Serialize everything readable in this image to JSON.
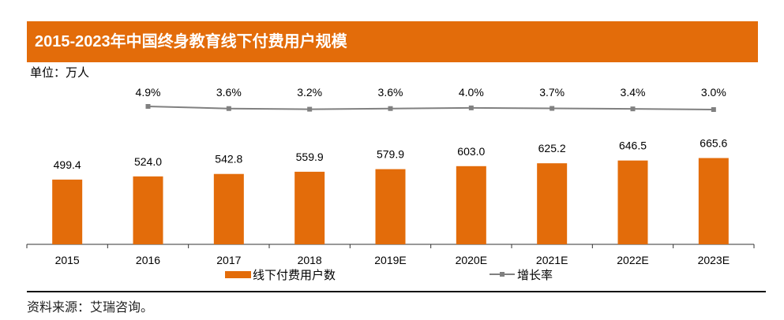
{
  "chart_data": {
    "type": "bar+line",
    "title": "2015-2023年中国终身教育线下付费用户规模",
    "unit": "单位：万人",
    "categories": [
      "2015",
      "2016",
      "2017",
      "2018",
      "2019E",
      "2020E",
      "2021E",
      "2022E",
      "2023E"
    ],
    "series": [
      {
        "name": "线下付费用户数",
        "type": "bar",
        "values": [
          499.4,
          524.0,
          542.8,
          559.9,
          579.9,
          603.0,
          625.2,
          646.5,
          665.6
        ],
        "labels": [
          "499.4",
          "524.0",
          "542.8",
          "559.9",
          "579.9",
          "603.0",
          "625.2",
          "646.5",
          "665.6"
        ],
        "color": "#E36C0A"
      },
      {
        "name": "增长率",
        "type": "line",
        "values": [
          null,
          4.9,
          3.6,
          3.2,
          3.6,
          4.0,
          3.7,
          3.4,
          3.0
        ],
        "labels": [
          "",
          "4.9%",
          "3.6%",
          "3.2%",
          "3.6%",
          "4.0%",
          "3.7%",
          "3.4%",
          "3.0%"
        ],
        "color": "#808080"
      }
    ],
    "grid": false,
    "legend": "bottom"
  },
  "source": "资料来源：艾瑞咨询。"
}
